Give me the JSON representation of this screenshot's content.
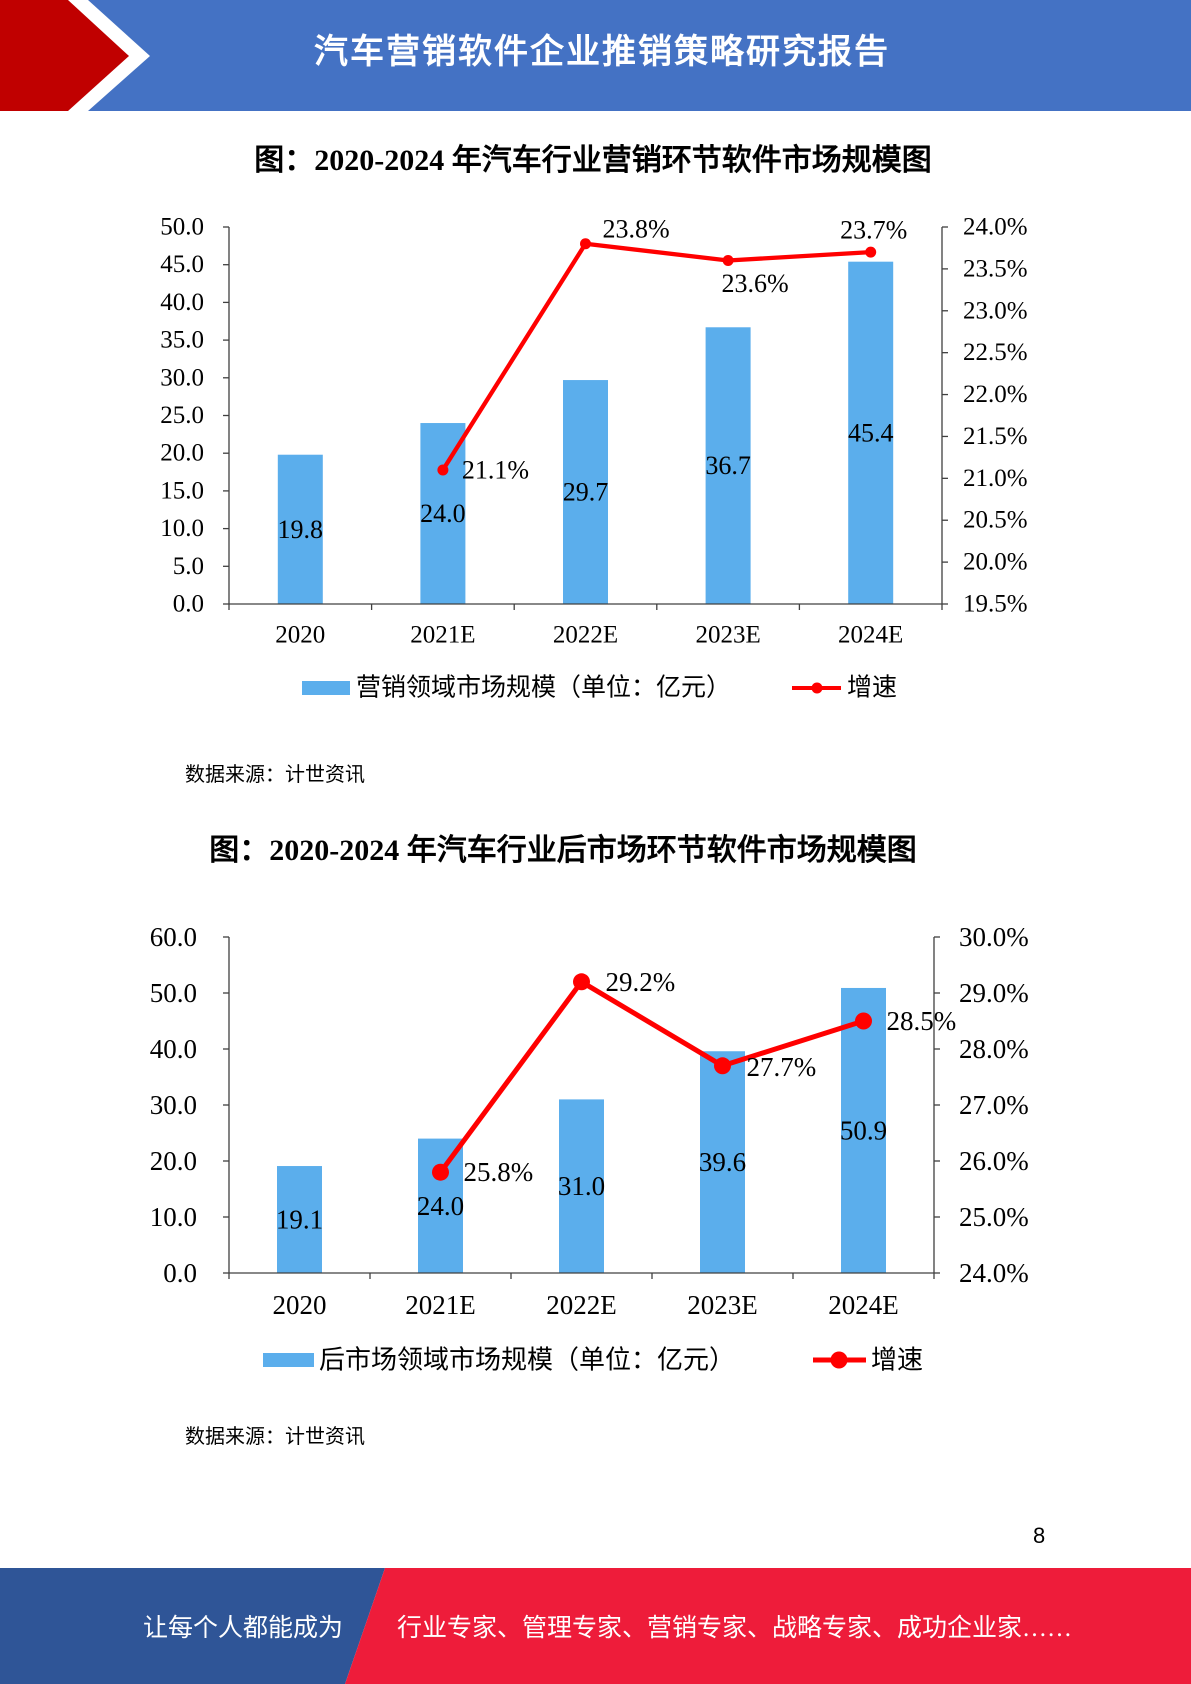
{
  "header": {
    "title": "汽车营销软件企业推销策略研究报告"
  },
  "colors": {
    "header_blue": "#4472C4",
    "header_red": "#C00000",
    "bar": "#5BAEEC",
    "line": "#FF0000",
    "footer_blue": "#2F5597",
    "footer_red": "#EE1C3A"
  },
  "chart_data": [
    {
      "type": "bar",
      "title": "图：2020-2024 年汽车行业营销环节软件市场规模图",
      "categories": [
        "2020",
        "2021E",
        "2022E",
        "2023E",
        "2024E"
      ],
      "ylim": [
        0,
        50
      ],
      "y_ticks": [
        "0.0",
        "5.0",
        "10.0",
        "15.0",
        "20.0",
        "25.0",
        "30.0",
        "35.0",
        "40.0",
        "45.0",
        "50.0"
      ],
      "y2lim": [
        19.5,
        24.0
      ],
      "y2_ticks": [
        "19.5%",
        "20.0%",
        "20.5%",
        "21.0%",
        "21.5%",
        "22.0%",
        "22.5%",
        "23.0%",
        "23.5%",
        "24.0%"
      ],
      "series": [
        {
          "name": "营销领域市场规模（单位：亿元）",
          "type": "bar",
          "axis": "left",
          "values": [
            19.8,
            24.0,
            29.7,
            36.7,
            45.4
          ],
          "labels": [
            "19.8",
            "24.0",
            "29.7",
            "36.7",
            "45.4"
          ]
        },
        {
          "name": "增速",
          "type": "line",
          "axis": "right",
          "x": [
            "2021E",
            "2022E",
            "2023E",
            "2024E"
          ],
          "values": [
            21.1,
            23.8,
            23.6,
            23.7
          ],
          "labels": [
            "21.1%",
            "23.8%",
            "23.6%",
            "23.7%"
          ]
        }
      ],
      "legend": "bottom",
      "grid": false,
      "source": "数据来源：计世资讯"
    },
    {
      "type": "bar",
      "title": "图：2020-2024 年汽车行业后市场环节软件市场规模图",
      "categories": [
        "2020",
        "2021E",
        "2022E",
        "2023E",
        "2024E"
      ],
      "ylim": [
        0,
        60
      ],
      "y_ticks": [
        "0.0",
        "10.0",
        "20.0",
        "30.0",
        "40.0",
        "50.0",
        "60.0"
      ],
      "y2lim": [
        24.0,
        30.0
      ],
      "y2_ticks": [
        "24.0%",
        "25.0%",
        "26.0%",
        "27.0%",
        "28.0%",
        "29.0%",
        "30.0%"
      ],
      "series": [
        {
          "name": "后市场领域市场规模（单位：亿元）",
          "type": "bar",
          "axis": "left",
          "values": [
            19.1,
            24.0,
            31.0,
            39.6,
            50.9
          ],
          "labels": [
            "19.1",
            "24.0",
            "31.0",
            "39.6",
            "50.9"
          ]
        },
        {
          "name": "增速",
          "type": "line",
          "axis": "right",
          "x": [
            "2021E",
            "2022E",
            "2023E",
            "2024E"
          ],
          "values": [
            25.8,
            29.2,
            27.7,
            28.5
          ],
          "labels": [
            "25.8%",
            "29.2%",
            "27.7%",
            "28.5%"
          ]
        }
      ],
      "legend": "bottom",
      "grid": false,
      "source": "数据来源：计世资讯"
    }
  ],
  "page_number": "8",
  "footer": {
    "lead": "让每个人都能成为",
    "tagline": "行业专家、管理专家、营销专家、战略专家、成功企业家……"
  }
}
